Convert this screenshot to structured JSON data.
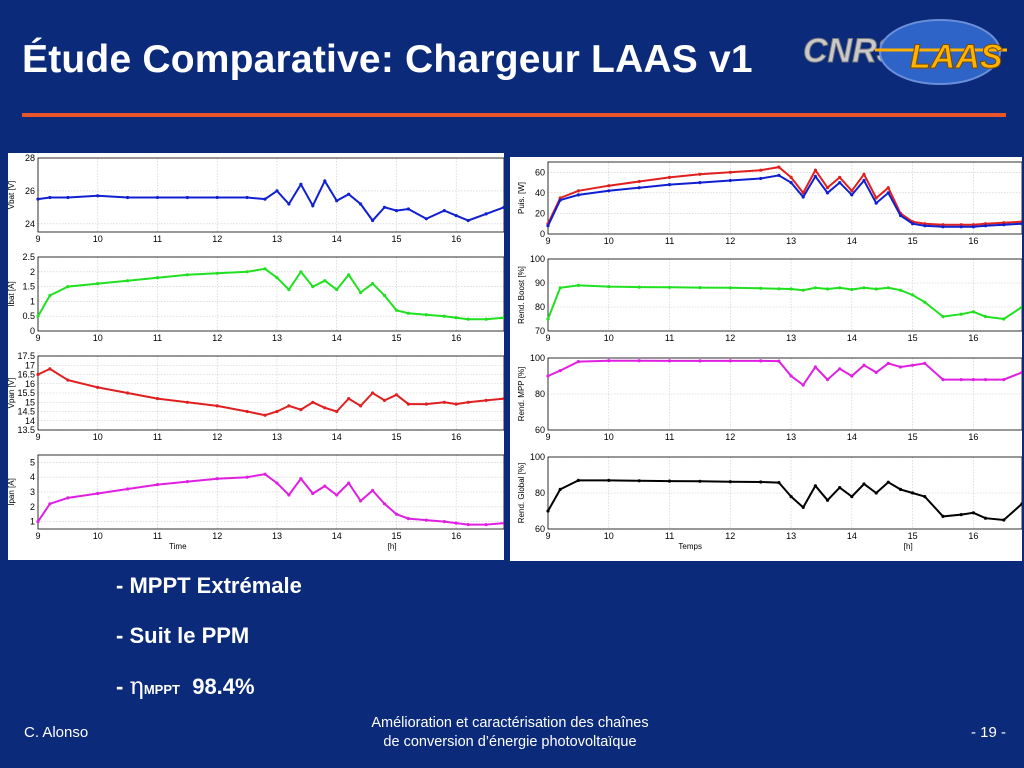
{
  "slide": {
    "title": "Étude Comparative: Chargeur LAAS v1",
    "logo": {
      "left_text": "CNRS",
      "right_text": "LAAS"
    }
  },
  "bullets": [
    {
      "prefix": "- ",
      "text": "MPPT Extrémale"
    },
    {
      "prefix": "- ",
      "text": "Suit le PPM"
    },
    {
      "prefix": "- ",
      "symbol": "η",
      "subscript": "MPPT",
      "value": "98.4%"
    }
  ],
  "footer": {
    "author": "C. Alonso",
    "center_line1": "Amélioration et caractérisation des chaînes",
    "center_line2": "de conversion d’énergie photovoltaïque",
    "page": "- 19 -"
  },
  "chart_data": [
    {
      "type": "scatter",
      "panel": "left",
      "ylabel": "Vbat [V]",
      "ylim": [
        23.5,
        28
      ],
      "yticks": [
        24,
        26,
        28
      ],
      "xlim": [
        9,
        16.8
      ],
      "xticks": [
        9,
        10,
        11,
        12,
        13,
        14,
        15,
        16
      ],
      "color": "#1020d0",
      "x": [
        9.0,
        9.2,
        9.5,
        10,
        10.5,
        11,
        11.5,
        12,
        12.5,
        12.8,
        13,
        13.2,
        13.4,
        13.6,
        13.8,
        14,
        14.2,
        14.4,
        14.6,
        14.8,
        15,
        15.2,
        15.5,
        15.8,
        16,
        16.2,
        16.5,
        16.8
      ],
      "y": [
        25.5,
        25.6,
        25.6,
        25.7,
        25.6,
        25.6,
        25.6,
        25.6,
        25.6,
        25.5,
        26.0,
        25.2,
        26.4,
        25.1,
        26.6,
        25.4,
        25.8,
        25.2,
        24.2,
        25.0,
        24.8,
        24.9,
        24.3,
        24.8,
        24.5,
        24.2,
        24.6,
        25.0
      ]
    },
    {
      "type": "scatter",
      "panel": "left",
      "ylabel": "Ibat [A]",
      "ylim": [
        0,
        2.5
      ],
      "yticks": [
        0,
        0.5,
        1,
        1.5,
        2,
        2.5
      ],
      "xlim": [
        9,
        16.8
      ],
      "xticks": [
        9,
        10,
        11,
        12,
        13,
        14,
        15,
        16
      ],
      "color": "#20e020",
      "x": [
        9.0,
        9.2,
        9.5,
        10,
        10.5,
        11,
        11.5,
        12,
        12.5,
        12.8,
        13,
        13.2,
        13.4,
        13.6,
        13.8,
        14,
        14.2,
        14.4,
        14.6,
        14.8,
        15,
        15.2,
        15.5,
        15.8,
        16,
        16.2,
        16.5,
        16.8
      ],
      "y": [
        0.5,
        1.2,
        1.5,
        1.6,
        1.7,
        1.8,
        1.9,
        1.95,
        2.0,
        2.1,
        1.8,
        1.4,
        2.0,
        1.5,
        1.7,
        1.4,
        1.9,
        1.3,
        1.6,
        1.2,
        0.7,
        0.6,
        0.55,
        0.5,
        0.45,
        0.4,
        0.4,
        0.45
      ]
    },
    {
      "type": "scatter",
      "panel": "left",
      "ylabel": "Vpan [V]",
      "ylim": [
        13.5,
        17.5
      ],
      "yticks": [
        13.5,
        14,
        14.5,
        15,
        15.5,
        16,
        16.5,
        17,
        17.5
      ],
      "xlim": [
        9,
        16.8
      ],
      "xticks": [
        9,
        10,
        11,
        12,
        13,
        14,
        15,
        16
      ],
      "color": "#e02020",
      "x": [
        9.0,
        9.2,
        9.5,
        10,
        10.5,
        11,
        11.5,
        12,
        12.5,
        12.8,
        13,
        13.2,
        13.4,
        13.6,
        13.8,
        14,
        14.2,
        14.4,
        14.6,
        14.8,
        15,
        15.2,
        15.5,
        15.8,
        16,
        16.2,
        16.5,
        16.8
      ],
      "y": [
        16.5,
        16.8,
        16.2,
        15.8,
        15.5,
        15.2,
        15.0,
        14.8,
        14.5,
        14.3,
        14.5,
        14.8,
        14.6,
        15.0,
        14.7,
        14.5,
        15.2,
        14.8,
        15.5,
        15.1,
        15.4,
        14.9,
        14.9,
        15.0,
        14.9,
        15.0,
        15.1,
        15.2
      ]
    },
    {
      "type": "scatter",
      "panel": "left",
      "ylabel": "Ipan [A]",
      "ylim": [
        0.5,
        5.5
      ],
      "yticks": [
        1,
        2,
        3,
        4,
        5
      ],
      "xlim": [
        9,
        16.8
      ],
      "xticks": [
        9,
        10,
        11,
        12,
        13,
        14,
        15,
        16
      ],
      "xlabel": "Time",
      "xunit": "[h]",
      "color": "#e020e0",
      "x": [
        9.0,
        9.2,
        9.5,
        10,
        10.5,
        11,
        11.5,
        12,
        12.5,
        12.8,
        13,
        13.2,
        13.4,
        13.6,
        13.8,
        14,
        14.2,
        14.4,
        14.6,
        14.8,
        15,
        15.2,
        15.5,
        15.8,
        16,
        16.2,
        16.5,
        16.8
      ],
      "y": [
        1.0,
        2.2,
        2.6,
        2.9,
        3.2,
        3.5,
        3.7,
        3.9,
        4.0,
        4.2,
        3.6,
        2.8,
        3.9,
        2.9,
        3.4,
        2.8,
        3.6,
        2.4,
        3.1,
        2.2,
        1.5,
        1.2,
        1.1,
        1.0,
        0.9,
        0.8,
        0.8,
        0.9
      ]
    },
    {
      "type": "line",
      "panel": "right",
      "ylabel": "Puis. [W]",
      "ylim": [
        0,
        70
      ],
      "yticks": [
        0,
        20,
        40,
        60
      ],
      "xlim": [
        9,
        16.8
      ],
      "xticks": [
        9,
        10,
        11,
        12,
        13,
        14,
        15,
        16
      ],
      "x": [
        9.0,
        9.2,
        9.5,
        10,
        10.5,
        11,
        11.5,
        12,
        12.5,
        12.8,
        13,
        13.2,
        13.4,
        13.6,
        13.8,
        14,
        14.2,
        14.4,
        14.6,
        14.8,
        15,
        15.2,
        15.5,
        15.8,
        16,
        16.2,
        16.5,
        16.8
      ],
      "series": [
        {
          "color": "#e02020",
          "y": [
            10,
            35,
            42,
            47,
            51,
            55,
            58,
            60,
            62,
            65,
            55,
            40,
            62,
            45,
            55,
            42,
            58,
            35,
            45,
            20,
            12,
            10,
            9,
            9,
            9,
            10,
            11,
            12
          ]
        },
        {
          "color": "#1020d0",
          "y": [
            8,
            33,
            38,
            42,
            45,
            48,
            50,
            52,
            54,
            57,
            50,
            36,
            56,
            40,
            50,
            38,
            52,
            30,
            40,
            18,
            10,
            8,
            7,
            7,
            7,
            8,
            9,
            10
          ]
        }
      ]
    },
    {
      "type": "scatter",
      "panel": "right",
      "ylabel": "Rend. Boost [%]",
      "ylim": [
        70,
        100
      ],
      "yticks": [
        70,
        80,
        90,
        100
      ],
      "xlim": [
        9,
        16.8
      ],
      "xticks": [
        9,
        10,
        11,
        12,
        13,
        14,
        15,
        16
      ],
      "color": "#20e020",
      "x": [
        9.0,
        9.2,
        9.5,
        10,
        10.5,
        11,
        11.5,
        12,
        12.5,
        12.8,
        13,
        13.2,
        13.4,
        13.6,
        13.8,
        14,
        14.2,
        14.4,
        14.6,
        14.8,
        15,
        15.2,
        15.5,
        15.8,
        16,
        16.2,
        16.5,
        16.8
      ],
      "y": [
        75,
        88,
        89,
        88.5,
        88.3,
        88.2,
        88.1,
        88,
        87.8,
        87.6,
        87.5,
        87,
        88,
        87.5,
        88,
        87.3,
        88,
        87.5,
        88,
        87,
        85,
        82,
        76,
        77,
        78,
        76,
        75,
        80
      ]
    },
    {
      "type": "scatter",
      "panel": "right",
      "ylabel": "Rend. MPP [%]",
      "ylim": [
        60,
        100
      ],
      "yticks": [
        60,
        80,
        100
      ],
      "xlim": [
        9,
        16.8
      ],
      "xticks": [
        9,
        10,
        11,
        12,
        13,
        14,
        15,
        16
      ],
      "color": "#e020e0",
      "x": [
        9.0,
        9.2,
        9.5,
        10,
        10.5,
        11,
        11.5,
        12,
        12.5,
        12.8,
        13,
        13.2,
        13.4,
        13.6,
        13.8,
        14,
        14.2,
        14.4,
        14.6,
        14.8,
        15,
        15.2,
        15.5,
        15.8,
        16,
        16.2,
        16.5,
        16.8
      ],
      "y": [
        90,
        93,
        98,
        98.5,
        98.5,
        98.4,
        98.4,
        98.4,
        98.4,
        98.3,
        90,
        85,
        95,
        88,
        94,
        90,
        96,
        92,
        97,
        95,
        96,
        97,
        88,
        88,
        88,
        88,
        88,
        92
      ]
    },
    {
      "type": "scatter",
      "panel": "right",
      "ylabel": "Rend. Global [%]",
      "ylim": [
        60,
        100
      ],
      "yticks": [
        60,
        80,
        100
      ],
      "xlim": [
        9,
        16.8
      ],
      "xticks": [
        9,
        10,
        11,
        12,
        13,
        14,
        15,
        16
      ],
      "xlabel": "Temps",
      "xunit": "[h]",
      "color": "#000000",
      "x": [
        9.0,
        9.2,
        9.5,
        10,
        10.5,
        11,
        11.5,
        12,
        12.5,
        12.8,
        13,
        13.2,
        13.4,
        13.6,
        13.8,
        14,
        14.2,
        14.4,
        14.6,
        14.8,
        15,
        15.2,
        15.5,
        15.8,
        16,
        16.2,
        16.5,
        16.8
      ],
      "y": [
        70,
        82,
        87,
        87,
        86.8,
        86.6,
        86.5,
        86.3,
        86.1,
        85.8,
        78,
        72,
        84,
        76,
        83,
        78,
        85,
        80,
        86,
        82,
        80,
        78,
        67,
        68,
        69,
        66,
        65,
        74
      ]
    }
  ]
}
